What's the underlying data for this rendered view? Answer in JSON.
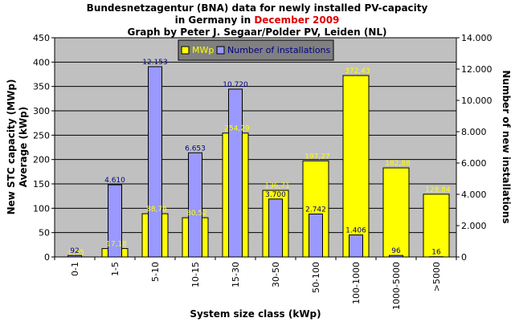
{
  "title": {
    "line1": "Bundesnetzagentur (BNA) data for newly installed PV-capacity",
    "line2_prefix": "in Germany in ",
    "line2_highlight": "December 2009",
    "line3": "Graph by Peter J. Segaar/Polder PV, Leiden (NL)"
  },
  "colors": {
    "plot_bg": "#c0c0c0",
    "mwp": "#ffff00",
    "installations": "#9999ff",
    "highlight": "#dd0000",
    "installation_labels": "#00008b"
  },
  "chart_data": {
    "type": "bar",
    "categories": [
      "0-1",
      "1-5",
      "5-10",
      "10-15",
      "15-30",
      "30-50",
      "50-100",
      "100-1000",
      "1000-5000",
      ">5000"
    ],
    "series": [
      {
        "name": "MWp",
        "axis": "left",
        "values": [
          0.05,
          17.18,
          88.76,
          80.52,
          254.29,
          136.71,
          197.27,
          372.43,
          182.88,
          128.84
        ],
        "labels": [
          "0,05",
          "17,18",
          "88,76",
          "80,52",
          "254,29",
          "136,71",
          "197,27",
          "372,43",
          "182,88",
          "128,84"
        ]
      },
      {
        "name": "Number of installations",
        "axis": "right",
        "values": [
          92,
          4610,
          12153,
          6653,
          10720,
          3700,
          2742,
          1406,
          96,
          16
        ],
        "labels": [
          "92",
          "4.610",
          "12.153",
          "6.653",
          "10.720",
          "3.700",
          "2.742",
          "1.406",
          "96",
          "16"
        ]
      }
    ],
    "xlabel": "System size class (kWp)",
    "ylabel_left_line1": "New STC capacity (MWp)",
    "ylabel_left_line2": "Average (kWp)",
    "ylabel_right": "Number of new installations",
    "ylim_left": [
      0,
      450
    ],
    "ylim_right": [
      0,
      14000
    ],
    "yticks_left": [
      "0",
      "50",
      "100",
      "150",
      "200",
      "250",
      "300",
      "350",
      "400",
      "450"
    ],
    "yticks_right": [
      "0",
      "2.000",
      "4.000",
      "6.000",
      "8.000",
      "10.000",
      "12.000",
      "14.000"
    ],
    "grid": true,
    "legend_position": "top-right"
  }
}
